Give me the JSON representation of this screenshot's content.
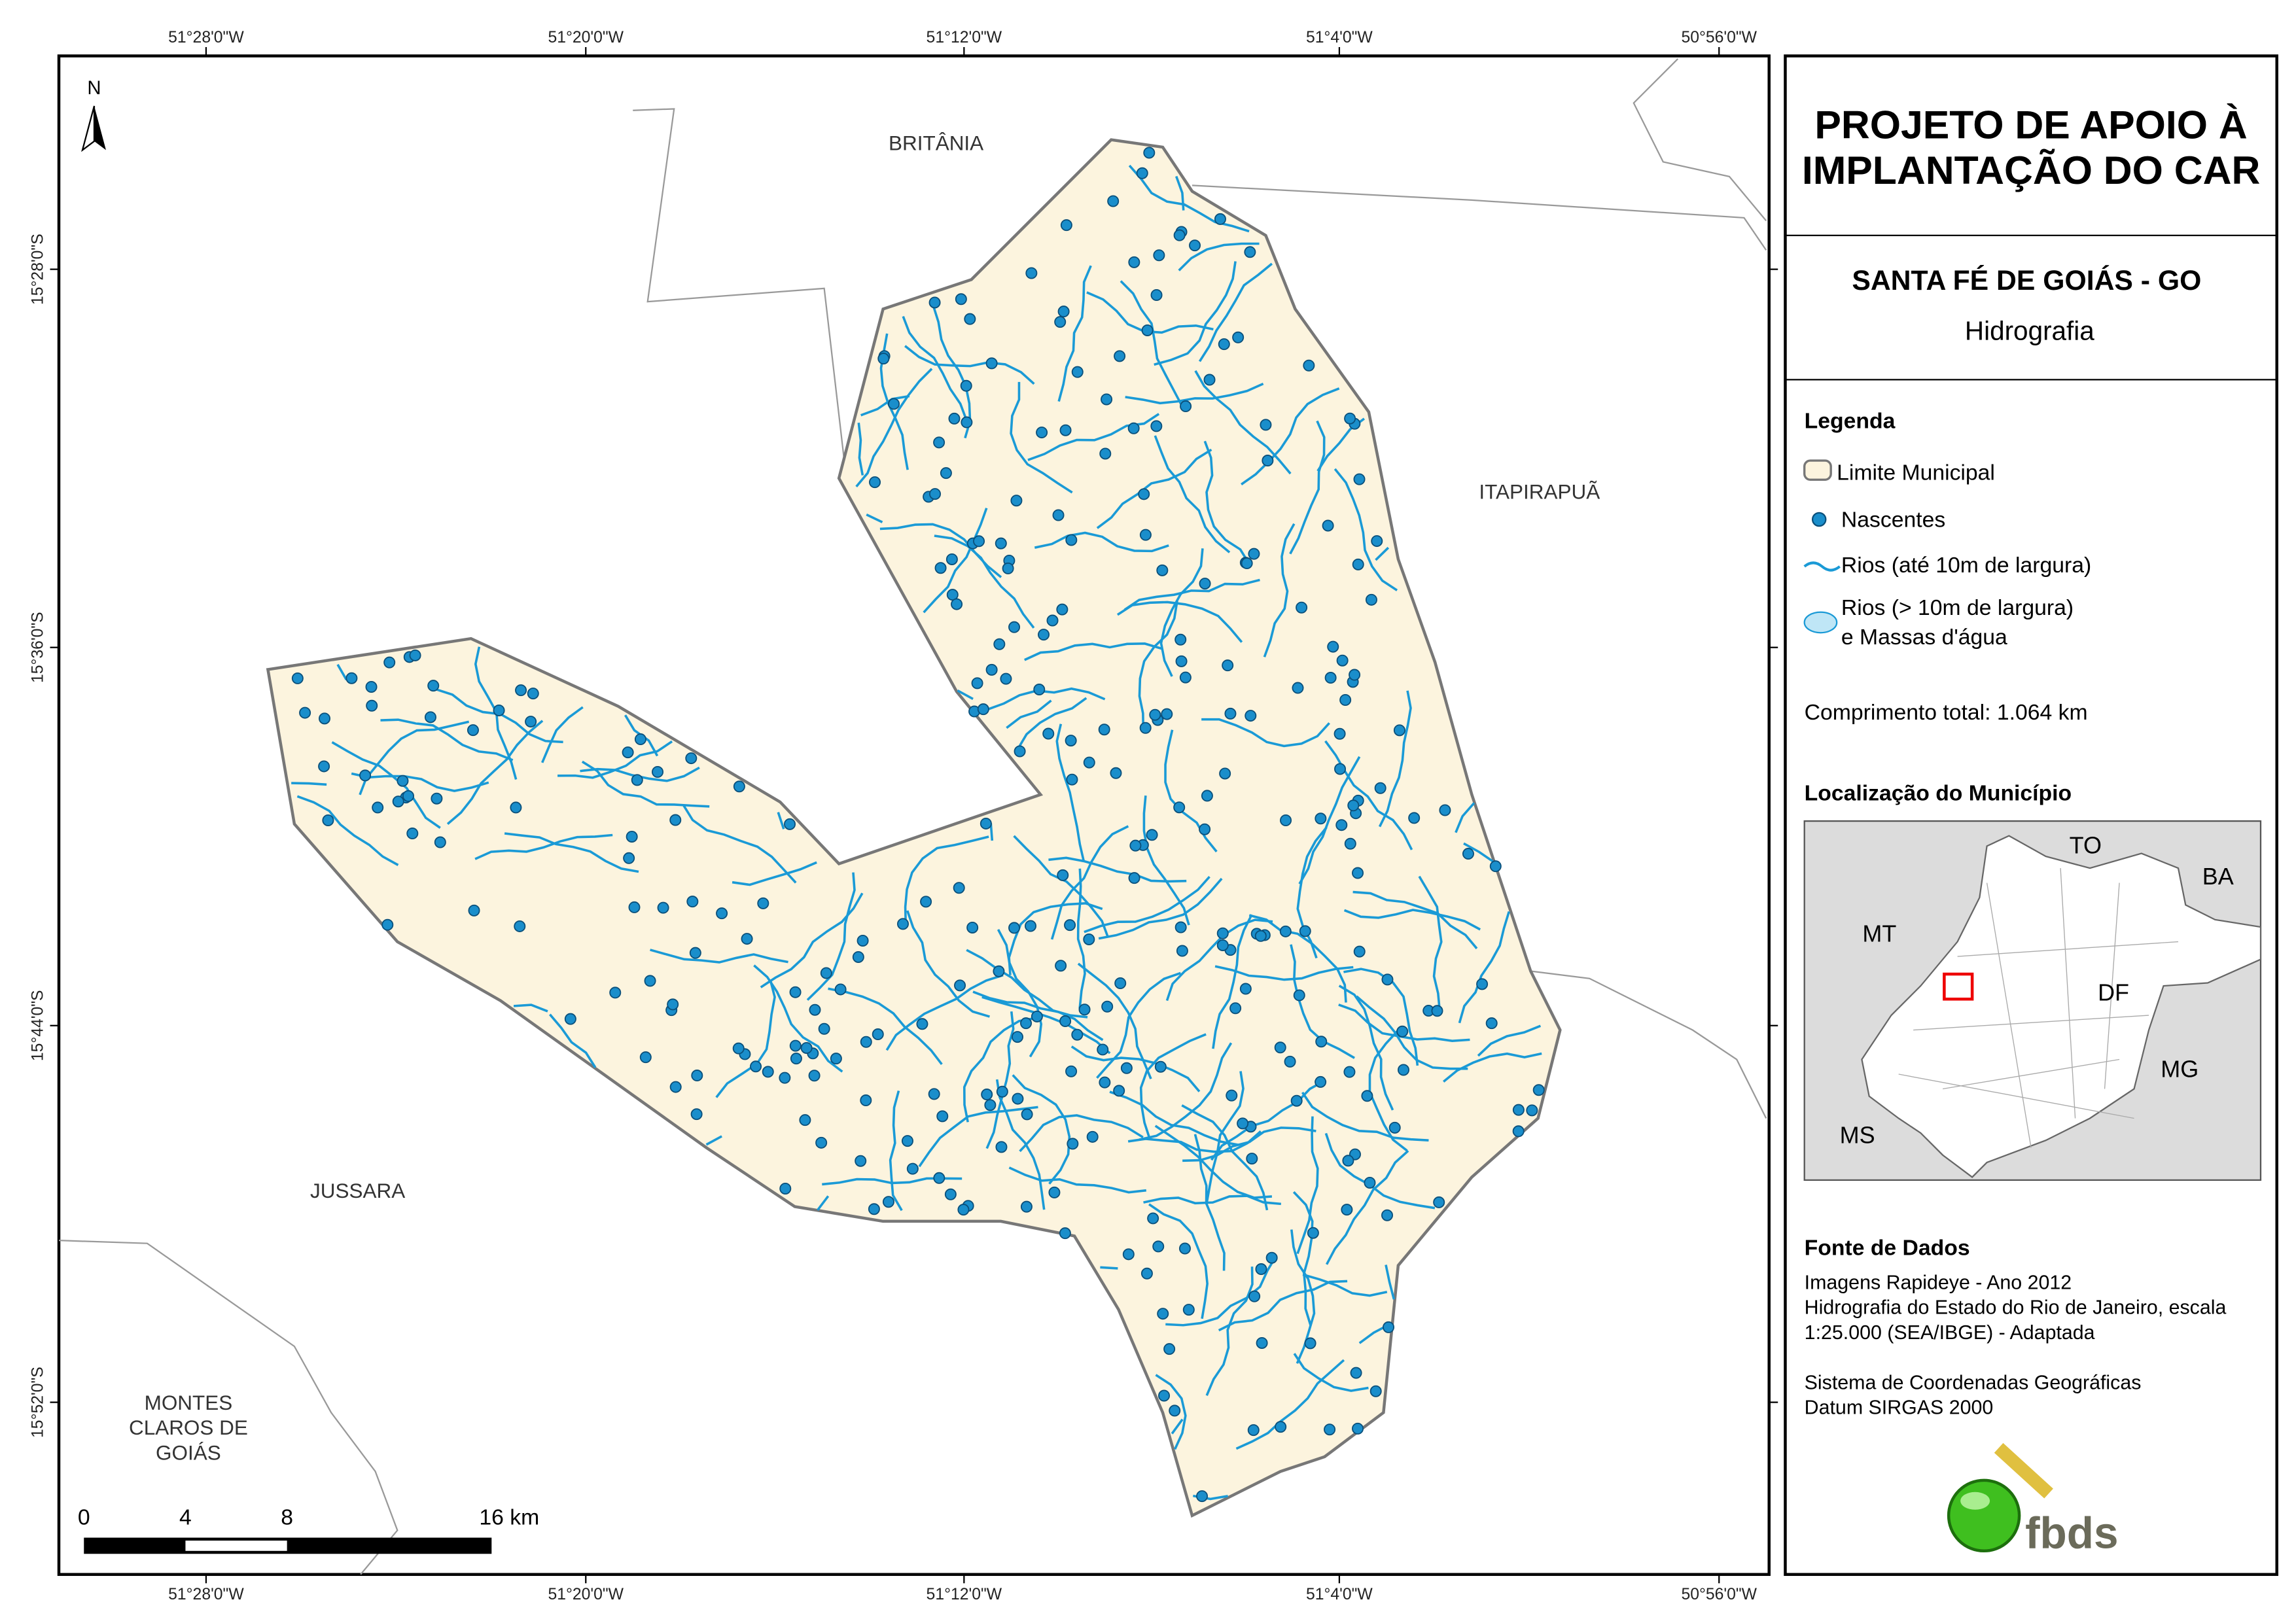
{
  "map": {
    "coord_labels": {
      "top": [
        "51°28'0\"W",
        "51°20'0\"W",
        "51°12'0\"W",
        "51°4'0\"W",
        "50°56'0\"W"
      ],
      "bottom": [
        "51°28'0\"W",
        "51°20'0\"W",
        "51°12'0\"W",
        "51°4'0\"W",
        "50°56'0\"W"
      ],
      "left": [
        "15°28'0\"S",
        "15°36'0\"S",
        "15°44'0\"S",
        "15°52'0\"S"
      ]
    },
    "north": "N",
    "places": [
      "BRITÂNIA",
      "ITAPIRAPUÃ",
      "JUSSARA"
    ],
    "montes_claros": [
      "MONTES",
      "CLAROS DE",
      "GOIÁS"
    ],
    "scale": [
      "0",
      "4",
      "8",
      "16 km"
    ]
  },
  "panel": {
    "title": [
      "PROJETO DE APOIO À",
      "IMPLANTAÇÃO DO CAR"
    ],
    "subtitle": "SANTA FÉ DE GOIÁS - GO",
    "theme": "Hidrografia",
    "legend": {
      "title": "Legenda",
      "items": [
        "Limite Municipal",
        "Nascentes",
        "Rios (até 10m de largura)",
        "Rios (> 10m de largura)",
        "e Massas d'água"
      ]
    },
    "total": "Comprimento total:  1.064 km",
    "location": {
      "title": "Localização do Município",
      "states": [
        "TO",
        "BA",
        "MT",
        "DF",
        "MG",
        "MS"
      ]
    },
    "sources": {
      "title": "Fonte de Dados",
      "lines": [
        "Imagens Rapideye - Ano 2012",
        "Hidrografia do Estado do Rio de Janeiro, escala",
        "1:25.000 (SEA/IBGE) - Adaptada",
        "",
        "Sistema de Coordenadas Geográficas",
        "Datum SIRGAS 2000"
      ]
    },
    "logo": "fbds"
  }
}
